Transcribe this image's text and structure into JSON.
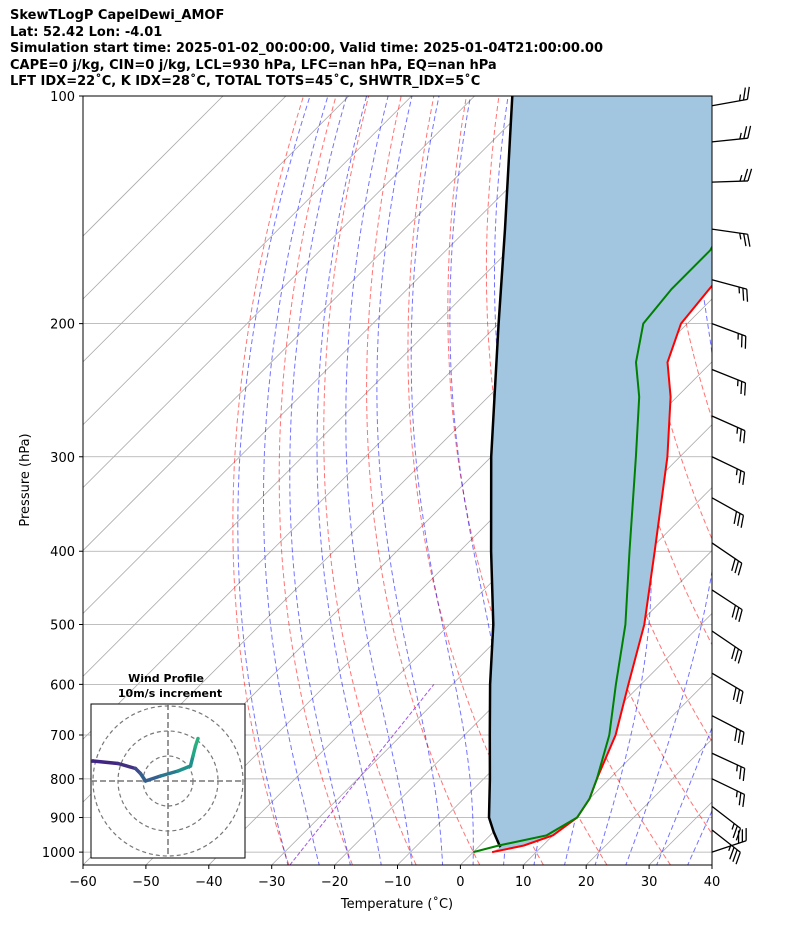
{
  "title_lines": [
    "SkewTLogP CapelDewi_AMOF",
    "Lat: 52.42   Lon: -4.01",
    "Simulation start time: 2025-01-02_00:00:00, Valid time: 2025-01-04T21:00:00.00",
    "CAPE=0 j/kg, CIN=0 j/kg, LCL=930 hPa, LFC=nan hPa, EQ=nan hPa",
    "LFT IDX=22˚C, K IDX=28˚C, TOTAL TOTS=45˚C, SHWTR_IDX=5˚C"
  ],
  "colors": {
    "temperature": "#ff0000",
    "dewpoint": "#008000",
    "parcel": "#000000",
    "shade": "#a3c6e0",
    "dry_adiabat": "#ff0000",
    "moist_adiabat": "#0000ff",
    "mixing_ratio": "#8a2be2",
    "isotherm": "#aaaaaa"
  },
  "chart_data": {
    "type": "skewt",
    "xlabel": "Temperature (˚C)",
    "ylabel": "Pressure (hPa)",
    "xlim": [
      -60,
      40
    ],
    "ylim": [
      1040,
      100
    ],
    "x_ticks": [
      -60,
      -50,
      -40,
      -30,
      -20,
      -10,
      0,
      10,
      20,
      30,
      40
    ],
    "x_tick_labels": [
      "−60",
      "−50",
      "−40",
      "−30",
      "−20",
      "−10",
      "0",
      "10",
      "20",
      "30",
      "40"
    ],
    "y_ticks": [
      1000,
      900,
      800,
      700,
      600,
      500,
      400,
      300,
      200,
      100
    ],
    "grid": true,
    "temperature_profile": [
      [
        1000,
        3
      ],
      [
        980,
        7
      ],
      [
        950,
        10
      ],
      [
        900,
        11
      ],
      [
        850,
        10
      ],
      [
        800,
        8
      ],
      [
        700,
        4
      ],
      [
        600,
        -2
      ],
      [
        500,
        -9
      ],
      [
        400,
        -19
      ],
      [
        300,
        -32
      ],
      [
        250,
        -41
      ],
      [
        225,
        -47
      ],
      [
        200,
        -51
      ],
      [
        180,
        -52
      ],
      [
        160,
        -53
      ],
      [
        140,
        -52
      ],
      [
        120,
        -50
      ],
      [
        100,
        -46
      ]
    ],
    "dewpoint_profile": [
      [
        1000,
        0
      ],
      [
        980,
        3
      ],
      [
        950,
        9
      ],
      [
        900,
        11
      ],
      [
        850,
        10
      ],
      [
        800,
        8
      ],
      [
        700,
        3
      ],
      [
        600,
        -4
      ],
      [
        500,
        -12
      ],
      [
        400,
        -23
      ],
      [
        300,
        -37
      ],
      [
        250,
        -46
      ],
      [
        225,
        -52
      ],
      [
        200,
        -57
      ],
      [
        180,
        -58
      ],
      [
        160,
        -58
      ],
      [
        140,
        -61
      ],
      [
        120,
        -64
      ],
      [
        100,
        -63
      ]
    ],
    "parcel_profile": [
      [
        985,
        3.5
      ],
      [
        940,
        0
      ],
      [
        900,
        -3
      ],
      [
        800,
        -9
      ],
      [
        700,
        -16
      ],
      [
        600,
        -24
      ],
      [
        500,
        -33
      ],
      [
        400,
        -45
      ],
      [
        300,
        -60
      ],
      [
        250,
        -69
      ],
      [
        200,
        -80
      ],
      [
        150,
        -94
      ],
      [
        100,
        -114
      ]
    ],
    "wind_barbs": [
      {
        "p": 1000,
        "u": -30,
        "v": -10
      },
      {
        "p": 935,
        "u": -28,
        "v": 22
      },
      {
        "p": 870,
        "u": -22,
        "v": 17
      },
      {
        "p": 800,
        "u": -25,
        "v": 12
      },
      {
        "p": 740,
        "u": -26,
        "v": 12
      },
      {
        "p": 660,
        "u": -27,
        "v": 14
      },
      {
        "p": 580,
        "u": -27,
        "v": 16
      },
      {
        "p": 510,
        "u": -25,
        "v": 17
      },
      {
        "p": 450,
        "u": -26,
        "v": 17
      },
      {
        "p": 390,
        "u": -25,
        "v": 17
      },
      {
        "p": 340,
        "u": -27,
        "v": 15
      },
      {
        "p": 300,
        "u": -25,
        "v": 12
      },
      {
        "p": 265,
        "u": -27,
        "v": 12
      },
      {
        "p": 230,
        "u": -25,
        "v": 10
      },
      {
        "p": 200,
        "u": -27,
        "v": 10
      },
      {
        "p": 175,
        "u": -26,
        "v": 7
      },
      {
        "p": 150,
        "u": -28,
        "v": 4
      },
      {
        "p": 130,
        "u": -29,
        "v": -1
      },
      {
        "p": 115,
        "u": -29,
        "v": -3
      },
      {
        "p": 103,
        "u": -28,
        "v": -5
      }
    ],
    "hodograph": {
      "title": "Wind Profile",
      "subtitle": "10m/s increment",
      "rings": [
        10,
        20,
        30
      ],
      "points": [
        [
          -38,
          -5
        ],
        [
          -40,
          -4
        ],
        [
          -39,
          3
        ],
        [
          -38,
          7
        ],
        [
          -30,
          8
        ],
        [
          -20,
          7
        ],
        [
          -13,
          5
        ],
        [
          -11,
          3
        ],
        [
          -9,
          0
        ],
        [
          -3,
          2
        ],
        [
          4,
          4
        ],
        [
          9,
          6
        ],
        [
          10,
          10
        ],
        [
          11,
          14
        ],
        [
          12,
          17
        ]
      ]
    }
  }
}
